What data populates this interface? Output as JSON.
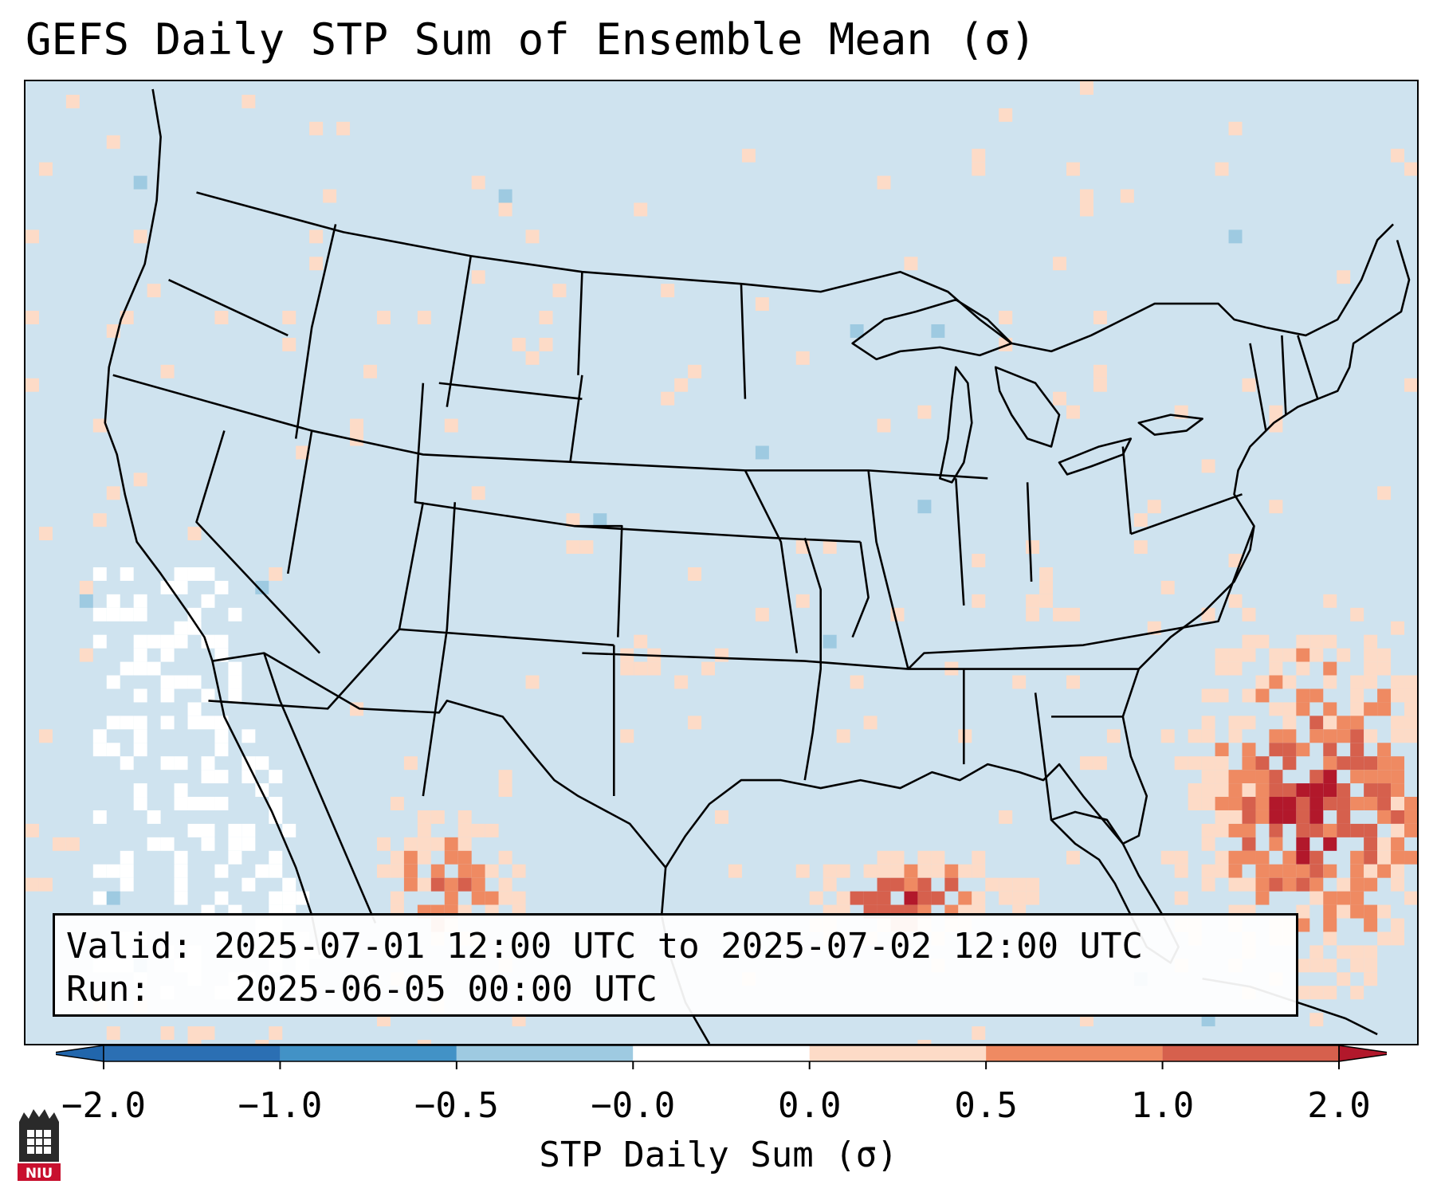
{
  "title": "GEFS Daily STP Sum of Ensemble Mean (σ)",
  "info": {
    "valid_label": "Valid:",
    "valid_value": "2025-07-01 12:00 UTC to 2025-07-02 12:00 UTC",
    "run_label": "Run:",
    "run_value": "2025-06-05 00:00 UTC"
  },
  "colorbar": {
    "label": "STP Daily Sum (σ)",
    "tick_labels": [
      "−2.0",
      "−1.0",
      "−0.5",
      "−0.0",
      "0.0",
      "0.5",
      "1.0",
      "2.0"
    ],
    "colors": [
      "#2b6fb3",
      "#4292c6",
      "#9ecae1",
      "#cfe3ef",
      "#ffffff",
      "#fddbc7",
      "#ef8a62",
      "#d6604d",
      "#b2182b"
    ],
    "under_color": "#2166ac",
    "over_color": "#b2182b"
  },
  "map": {
    "ocean_color": "#cfe3ef",
    "outline_color": "#000000",
    "boundaries": "US states, Canada provinces, Mexico"
  },
  "logo": {
    "text": "NIU",
    "color": "#c8102e"
  }
}
